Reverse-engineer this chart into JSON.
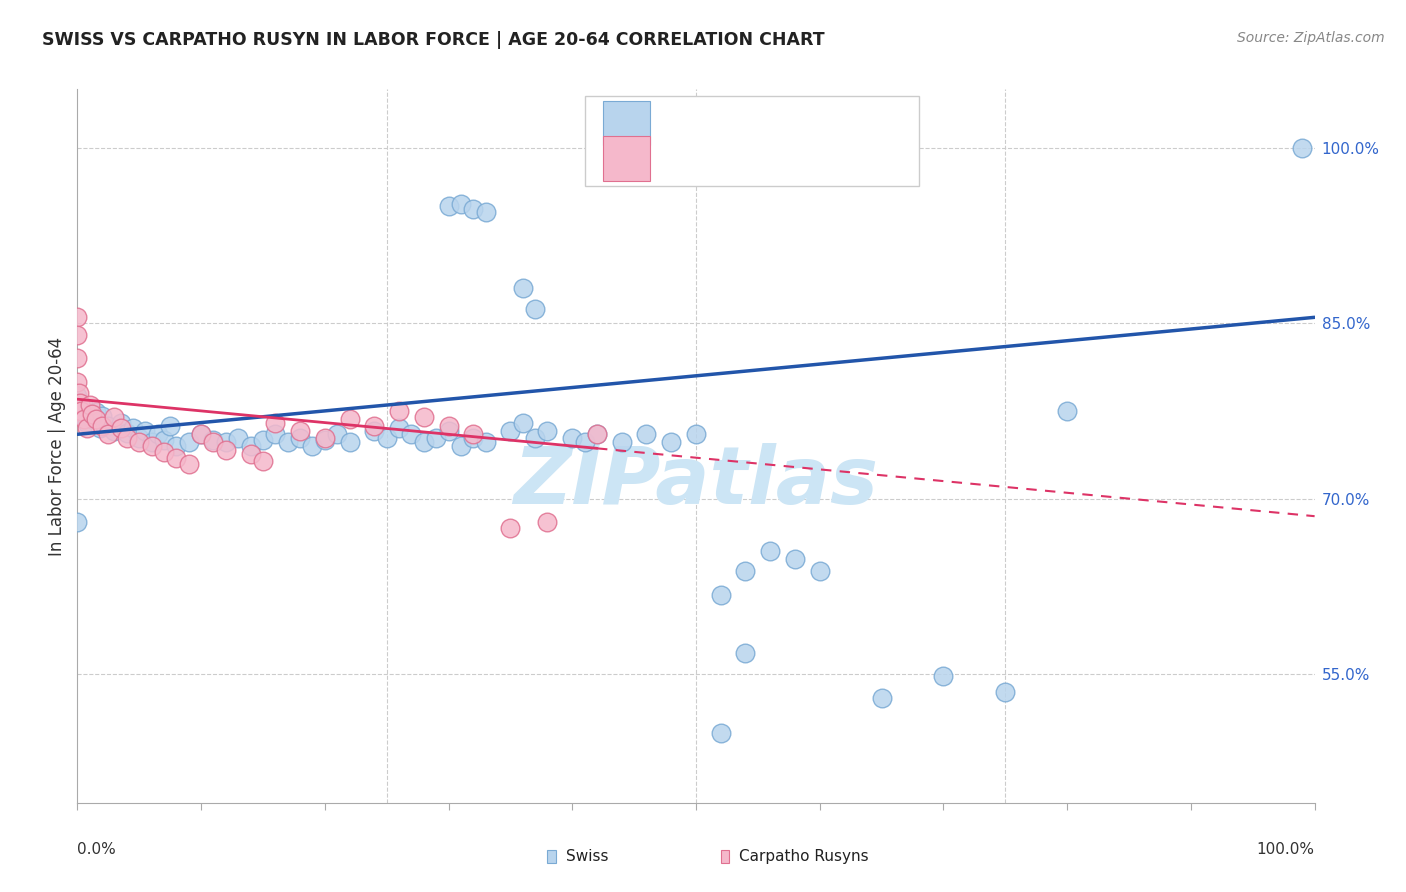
{
  "title": "SWISS VS CARPATHO RUSYN IN LABOR FORCE | AGE 20-64 CORRELATION CHART",
  "source": "Source: ZipAtlas.com",
  "ylabel": "In Labor Force | Age 20-64",
  "ytick_values": [
    0.55,
    0.7,
    0.85,
    1.0
  ],
  "ytick_labels": [
    "55.0%",
    "70.0%",
    "85.0%",
    "100.0%"
  ],
  "xlim": [
    0.0,
    1.0
  ],
  "ylim": [
    0.44,
    1.05
  ],
  "blue_color": "#b8d4ed",
  "blue_outline": "#7aaad4",
  "pink_color": "#f5b8cb",
  "pink_outline": "#e07090",
  "blue_line_color": "#2255aa",
  "pink_line_color": "#dd3366",
  "watermark_color": "#cce5f5",
  "grid_color": "#cccccc",
  "title_color": "#222222",
  "source_color": "#888888",
  "right_label_color": "#3366cc",
  "blue_line_x0": 0.0,
  "blue_line_y0": 0.755,
  "blue_line_x1": 1.0,
  "blue_line_y1": 0.855,
  "pink_line_x0": 0.0,
  "pink_line_y0": 0.785,
  "pink_line_x1": 1.0,
  "pink_line_y1": 0.685,
  "swiss_x": [
    0.0,
    0.0,
    0.0,
    0.005,
    0.005,
    0.008,
    0.012,
    0.015,
    0.018,
    0.02,
    0.025,
    0.03,
    0.035,
    0.04,
    0.045,
    0.05,
    0.055,
    0.06,
    0.065,
    0.07,
    0.075,
    0.08,
    0.09,
    0.1,
    0.11,
    0.12,
    0.13,
    0.14,
    0.15,
    0.16,
    0.17,
    0.18,
    0.19,
    0.2,
    0.21,
    0.22,
    0.24,
    0.25,
    0.26,
    0.27,
    0.28,
    0.29,
    0.3,
    0.31,
    0.32,
    0.33,
    0.35,
    0.36,
    0.37,
    0.38,
    0.4,
    0.41,
    0.42,
    0.44,
    0.46,
    0.48,
    0.5,
    0.52,
    0.54,
    0.56,
    0.3,
    0.31,
    0.32,
    0.33,
    0.58,
    0.6,
    0.65,
    0.7,
    0.75,
    0.8,
    0.36,
    0.37,
    0.52,
    0.54,
    0.99,
    0.0
  ],
  "swiss_y": [
    0.775,
    0.782,
    0.788,
    0.77,
    0.778,
    0.765,
    0.768,
    0.774,
    0.76,
    0.771,
    0.762,
    0.758,
    0.765,
    0.756,
    0.76,
    0.752,
    0.758,
    0.748,
    0.755,
    0.75,
    0.762,
    0.745,
    0.748,
    0.755,
    0.75,
    0.748,
    0.752,
    0.745,
    0.75,
    0.755,
    0.748,
    0.752,
    0.745,
    0.75,
    0.755,
    0.748,
    0.758,
    0.752,
    0.76,
    0.755,
    0.748,
    0.752,
    0.758,
    0.745,
    0.752,
    0.748,
    0.758,
    0.765,
    0.752,
    0.758,
    0.752,
    0.748,
    0.755,
    0.748,
    0.755,
    0.748,
    0.755,
    0.618,
    0.638,
    0.655,
    0.95,
    0.952,
    0.948,
    0.945,
    0.648,
    0.638,
    0.53,
    0.548,
    0.535,
    0.775,
    0.88,
    0.862,
    0.5,
    0.568,
    1.0,
    0.68
  ],
  "rusyn_x": [
    0.0,
    0.0,
    0.0,
    0.0,
    0.0,
    0.001,
    0.002,
    0.003,
    0.005,
    0.008,
    0.01,
    0.012,
    0.015,
    0.02,
    0.025,
    0.03,
    0.035,
    0.04,
    0.05,
    0.06,
    0.07,
    0.08,
    0.09,
    0.1,
    0.11,
    0.12,
    0.14,
    0.15,
    0.16,
    0.18,
    0.2,
    0.22,
    0.24,
    0.26,
    0.28,
    0.3,
    0.32,
    0.35,
    0.38,
    0.42
  ],
  "rusyn_y": [
    0.855,
    0.84,
    0.82,
    0.8,
    0.775,
    0.79,
    0.782,
    0.775,
    0.768,
    0.76,
    0.78,
    0.772,
    0.768,
    0.762,
    0.755,
    0.77,
    0.76,
    0.752,
    0.748,
    0.745,
    0.74,
    0.735,
    0.73,
    0.755,
    0.748,
    0.742,
    0.738,
    0.732,
    0.765,
    0.758,
    0.752,
    0.768,
    0.762,
    0.775,
    0.77,
    0.762,
    0.755,
    0.675,
    0.68,
    0.755
  ]
}
